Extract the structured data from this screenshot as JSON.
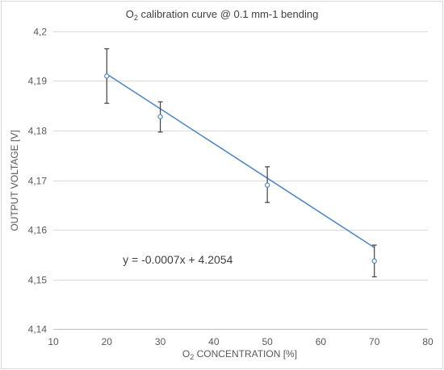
{
  "chart_data": {
    "type": "scatter",
    "title": {
      "prefix": "O",
      "sub": "2",
      "suffix": " calibration curve @ 0.1 mm-1 bending"
    },
    "xlabel": {
      "prefix": "O",
      "sub": "2",
      "suffix": " CONCENTRATION [%]"
    },
    "ylabel": "OUTPUT VOLTAGE [V]",
    "xlim": [
      10,
      80
    ],
    "ylim": [
      4.14,
      4.2
    ],
    "x_ticks": [
      "10",
      "20",
      "30",
      "40",
      "50",
      "60",
      "70",
      "80"
    ],
    "y_ticks": [
      "4,14",
      "4,15",
      "4,16",
      "4,17",
      "4,18",
      "4,19",
      "4,2"
    ],
    "grid": "horizontal",
    "series": [
      {
        "points": [
          {
            "x": 20,
            "y": 4.191,
            "err_low": 4.1855,
            "err_high": 4.1965
          },
          {
            "x": 30,
            "y": 4.1828,
            "err_low": 4.1797,
            "err_high": 4.1858
          },
          {
            "x": 50,
            "y": 4.169,
            "err_low": 4.1655,
            "err_high": 4.1727
          },
          {
            "x": 70,
            "y": 4.1537,
            "err_low": 4.1505,
            "err_high": 4.1569
          }
        ]
      }
    ],
    "trendline": {
      "slope": -0.0007,
      "intercept": 4.2054,
      "x_from": 20,
      "x_to": 70
    },
    "annotation": "y = -0.0007x + 4.2054",
    "annotation_pos": {
      "x": 23,
      "y": 4.154
    }
  }
}
